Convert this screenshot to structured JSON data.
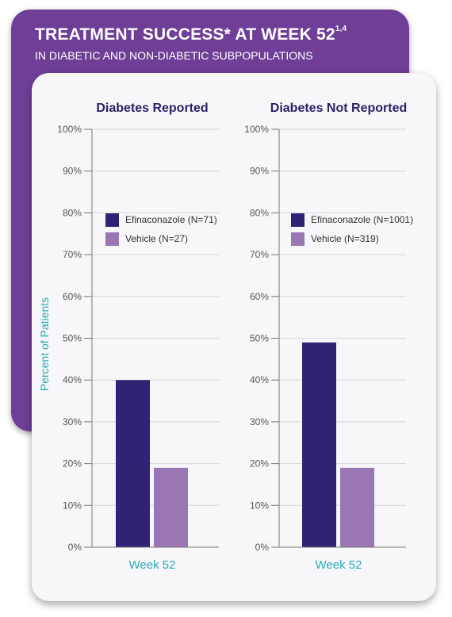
{
  "header": {
    "title": "TREATMENT SUCCESS* AT WEEK 52",
    "title_superscript": "1,4",
    "subtitle": "IN DIABETIC AND NON-DIABETIC SUBPOPULATIONS"
  },
  "colors": {
    "banner": "#6f3f97",
    "efinaconazole": "#2f2373",
    "vehicle": "#9a76b4",
    "accent_text": "#29a9b5",
    "title_text": "#2a2266"
  },
  "chart_data": [
    {
      "type": "bar",
      "title": "Diabetes Reported",
      "ylabel": "Percent of Patients",
      "xlabel": "Week 52",
      "categories": [
        "Week 52"
      ],
      "ylim": [
        0,
        100
      ],
      "yticks": [
        "0%",
        "10%",
        "20%",
        "30%",
        "40%",
        "50%",
        "60%",
        "70%",
        "80%",
        "90%",
        "100%"
      ],
      "grid": true,
      "legend_position": "top-right",
      "series": [
        {
          "name": "Efinaconazole (N=71)",
          "values": [
            40
          ]
        },
        {
          "name": "Vehicle (N=27)",
          "values": [
            19
          ]
        }
      ]
    },
    {
      "type": "bar",
      "title": "Diabetes Not Reported",
      "ylabel": "",
      "xlabel": "Week 52",
      "categories": [
        "Week 52"
      ],
      "ylim": [
        0,
        100
      ],
      "yticks": [
        "0%",
        "10%",
        "20%",
        "30%",
        "40%",
        "50%",
        "60%",
        "70%",
        "80%",
        "90%",
        "100%"
      ],
      "grid": true,
      "legend_position": "top-right",
      "series": [
        {
          "name": "Efinaconazole (N=1001)",
          "values": [
            49
          ]
        },
        {
          "name": "Vehicle (N=319)",
          "values": [
            19
          ]
        }
      ]
    }
  ]
}
